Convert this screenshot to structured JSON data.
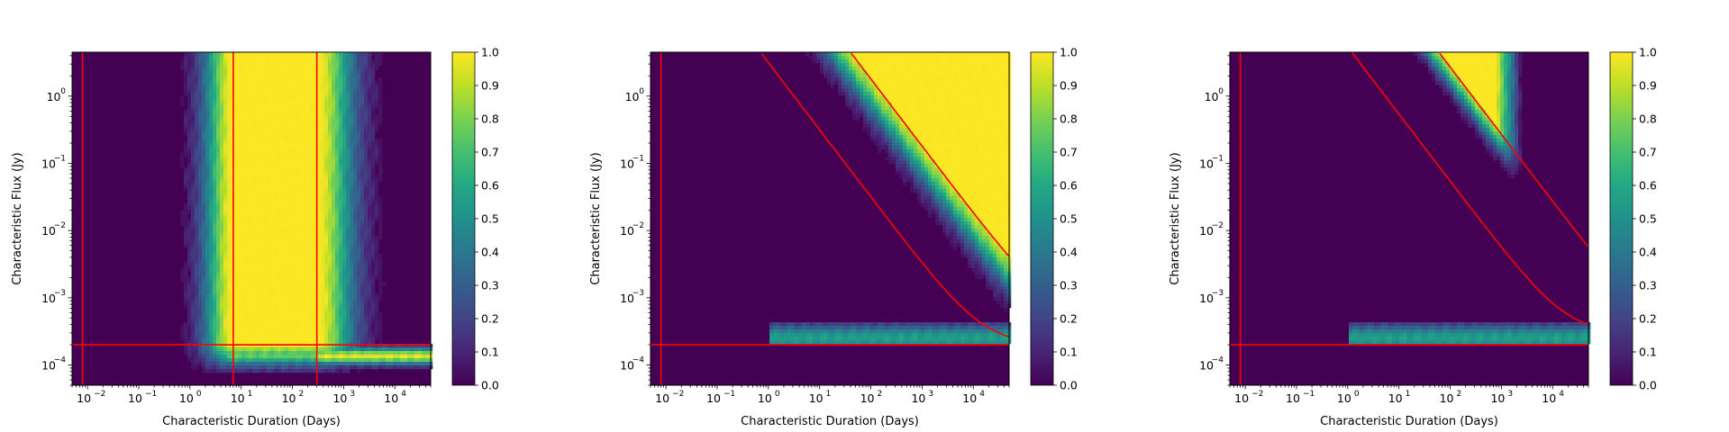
{
  "chart_data": [
    {
      "type": "heatmap",
      "xlabel": "Characteristic Duration (Days)",
      "ylabel": "Characteristic Flux (Jy)",
      "x_scale": "log",
      "y_scale": "log",
      "xlim": [
        0.005,
        50000
      ],
      "ylim": [
        5e-05,
        4.5
      ],
      "colorbar": {
        "range": [
          0,
          1
        ],
        "ticks": [
          "0.0",
          "0.1",
          "0.2",
          "0.3",
          "0.4",
          "0.5",
          "0.6",
          "0.7",
          "0.8",
          "0.9",
          "1.0"
        ]
      },
      "x_ticks": [
        {
          "exp": -2,
          "label": "10"
        },
        {
          "exp": -1,
          "label": "10"
        },
        {
          "exp": 0,
          "label": "10"
        },
        {
          "exp": 1,
          "label": "10"
        },
        {
          "exp": 2,
          "label": "10"
        },
        {
          "exp": 3,
          "label": "10"
        },
        {
          "exp": 4,
          "label": "10"
        }
      ],
      "y_ticks": [
        {
          "exp": -4,
          "label": "10"
        },
        {
          "exp": -3,
          "label": "10"
        },
        {
          "exp": -2,
          "label": "10"
        },
        {
          "exp": -1,
          "label": "10"
        },
        {
          "exp": 0,
          "label": "10"
        }
      ],
      "red_lines": {
        "vertical": [
          0.008,
          7,
          300
        ],
        "horizontal": [
          0.0002
        ]
      },
      "fully_detected_region": {
        "duration_min": 7,
        "duration_max": 300,
        "flux_min": 0.0002
      },
      "description_shape": "rect"
    },
    {
      "type": "heatmap",
      "xlabel": "Characteristic Duration (Days)",
      "ylabel": "Characteristic Flux (Jy)",
      "x_scale": "log",
      "y_scale": "log",
      "xlim": [
        0.005,
        50000
      ],
      "ylim": [
        5e-05,
        4.5
      ],
      "colorbar": {
        "range": [
          0,
          1
        ],
        "ticks": [
          "0.0",
          "0.1",
          "0.2",
          "0.3",
          "0.4",
          "0.5",
          "0.6",
          "0.7",
          "0.8",
          "0.9",
          "1.0"
        ]
      },
      "x_ticks": [
        {
          "exp": -2,
          "label": "10"
        },
        {
          "exp": -1,
          "label": "10"
        },
        {
          "exp": 0,
          "label": "10"
        },
        {
          "exp": 1,
          "label": "10"
        },
        {
          "exp": 2,
          "label": "10"
        },
        {
          "exp": 3,
          "label": "10"
        },
        {
          "exp": 4,
          "label": "10"
        }
      ],
      "y_ticks": [
        {
          "exp": -4,
          "label": "10"
        },
        {
          "exp": -3,
          "label": "10"
        },
        {
          "exp": -2,
          "label": "10"
        },
        {
          "exp": -1,
          "label": "10"
        },
        {
          "exp": 0,
          "label": "10"
        }
      ],
      "red_lines": {
        "vertical": [
          0.008
        ],
        "horizontal": [
          0.0002
        ],
        "curves": [
          {
            "name_hidden": true,
            "asymptote_flux": 0.0002,
            "duration_at_top": 0.7
          },
          {
            "name_hidden": true,
            "asymptote_flux": 0.00052,
            "duration_at_top": 40
          }
        ]
      },
      "fully_detected_region": {
        "curve_left": 0,
        "curve_right": 1
      },
      "description_shape": "hyperbolic"
    },
    {
      "type": "heatmap",
      "xlabel": "Characteristic Duration (Days)",
      "ylabel": "Characteristic Flux (Jy)",
      "x_scale": "log",
      "y_scale": "log",
      "xlim": [
        0.005,
        50000
      ],
      "ylim": [
        5e-05,
        4.5
      ],
      "colorbar": {
        "range": [
          0,
          1
        ],
        "ticks": [
          "0.0",
          "0.1",
          "0.2",
          "0.3",
          "0.4",
          "0.5",
          "0.6",
          "0.7",
          "0.8",
          "0.9",
          "1.0"
        ]
      },
      "x_ticks": [
        {
          "exp": -2,
          "label": "10"
        },
        {
          "exp": -1,
          "label": "10"
        },
        {
          "exp": 0,
          "label": "10"
        },
        {
          "exp": 1,
          "label": "10"
        },
        {
          "exp": 2,
          "label": "10"
        },
        {
          "exp": 3,
          "label": "10"
        },
        {
          "exp": 4,
          "label": "10"
        }
      ],
      "y_ticks": [
        {
          "exp": -4,
          "label": "10"
        },
        {
          "exp": -3,
          "label": "10"
        },
        {
          "exp": -2,
          "label": "10"
        },
        {
          "exp": -1,
          "label": "10"
        },
        {
          "exp": 0,
          "label": "10"
        }
      ],
      "red_lines": {
        "vertical": [
          0.008
        ],
        "horizontal": [
          0.0002
        ],
        "curves": [
          {
            "name_hidden": true,
            "asymptote_flux": 0.00029,
            "duration_at_top": 1.2
          },
          {
            "name_hidden": true,
            "asymptote_flux": 0.00029,
            "duration_at_top": 60
          }
        ]
      },
      "fully_detected_region": {
        "curve_left": 0,
        "curve_right": 1
      },
      "description_shape": "hyperbolic-pair"
    }
  ],
  "colors": {
    "line": "#ff0000",
    "viridis": [
      "#440154",
      "#482475",
      "#414487",
      "#355f8d",
      "#2a788e",
      "#21918c",
      "#22a884",
      "#44bf70",
      "#7ad151",
      "#bddf26",
      "#fde725"
    ]
  }
}
